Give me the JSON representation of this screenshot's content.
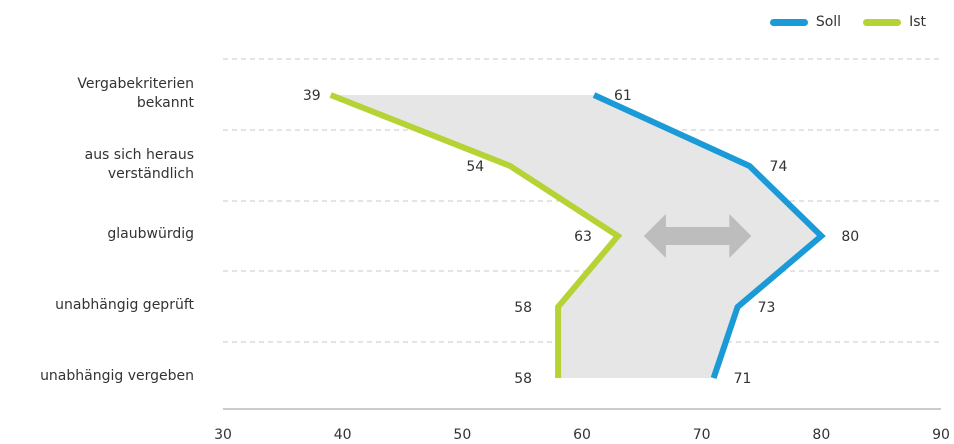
{
  "chart_data": {
    "type": "line",
    "orientation": "horizontal",
    "categories": [
      "Vergabekriterien\nbekannt",
      "aus sich heraus\nverständlich",
      "glaubwürdig",
      "unabhängig geprüft",
      "unabhängig vergeben"
    ],
    "series": [
      {
        "name": "Soll",
        "values": [
          61,
          74,
          80,
          73,
          71
        ],
        "color": "#1a9ad6"
      },
      {
        "name": "Ist",
        "values": [
          39,
          54,
          63,
          58,
          58
        ],
        "color": "#b5d334"
      }
    ],
    "xlim": [
      30,
      90
    ],
    "xticks": [
      "30",
      "40",
      "50",
      "60",
      "70",
      "80",
      "90"
    ],
    "gap_fill_color": "#e6e6e6",
    "arrow_color": "#bdbdbd",
    "legend_position": "top-right",
    "grid": "dashed horizontal separators",
    "title": "",
    "xlabel": "",
    "ylabel": ""
  }
}
